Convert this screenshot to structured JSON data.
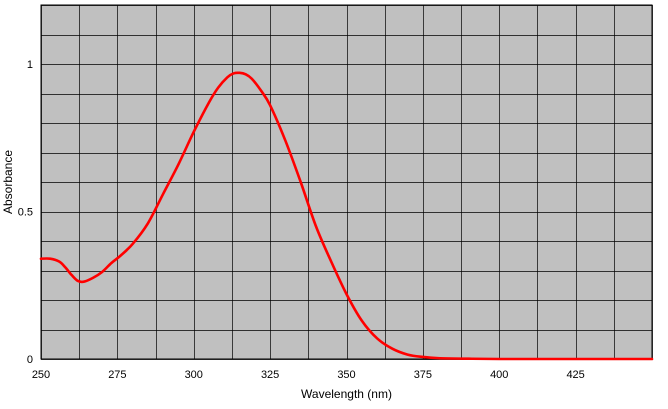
{
  "chart_data": {
    "type": "line",
    "xlabel": "Wavelength (nm)",
    "ylabel": "Absorbance",
    "xlim": [
      250,
      450
    ],
    "ylim": [
      0,
      1.2
    ],
    "x_ticks": [
      250,
      275,
      300,
      325,
      350,
      375,
      400,
      425
    ],
    "y_ticks": [
      0,
      0.5,
      1
    ],
    "x_tick_labels": [
      "250",
      "275",
      "300",
      "325",
      "350",
      "375",
      "400",
      "425"
    ],
    "y_tick_labels": [
      "0",
      "0.5",
      "1"
    ],
    "grid": true,
    "plot_background": "#c0c0c0",
    "grid_color": "#000000",
    "series": [
      {
        "color": "#ff0000",
        "x": [
          250,
          253,
          256,
          258,
          260,
          262,
          264,
          267,
          270,
          273,
          276,
          280,
          285,
          290,
          295,
          300,
          305,
          308,
          311,
          313,
          315,
          317,
          319,
          322,
          325,
          330,
          335,
          340,
          345,
          350,
          355,
          360,
          365,
          370,
          375,
          380,
          390,
          400,
          420,
          450
        ],
        "y": [
          0.34,
          0.34,
          0.33,
          0.31,
          0.285,
          0.265,
          0.262,
          0.275,
          0.295,
          0.325,
          0.35,
          0.39,
          0.46,
          0.56,
          0.66,
          0.77,
          0.87,
          0.92,
          0.955,
          0.968,
          0.97,
          0.965,
          0.95,
          0.91,
          0.86,
          0.74,
          0.6,
          0.45,
          0.33,
          0.22,
          0.13,
          0.07,
          0.035,
          0.015,
          0.007,
          0.003,
          0.001,
          0,
          0,
          0
        ]
      }
    ]
  }
}
